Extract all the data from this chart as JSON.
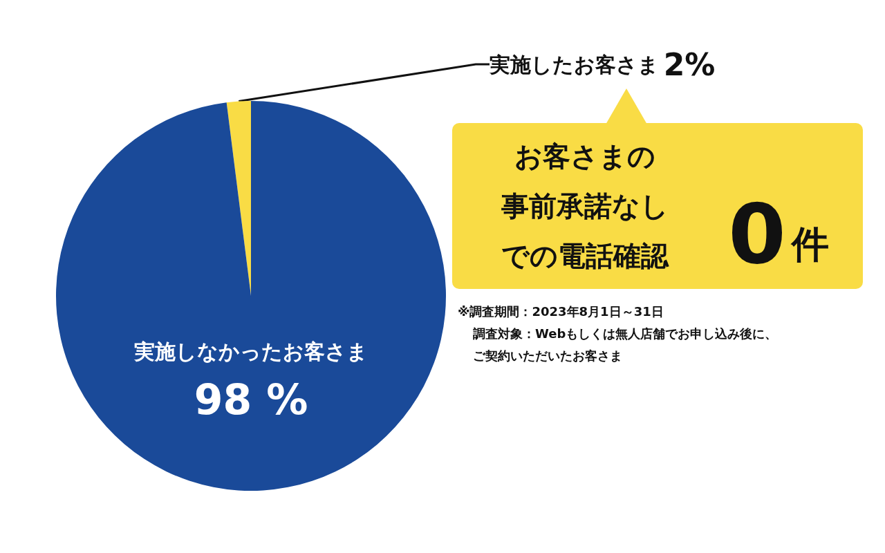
{
  "chart_data": {
    "type": "pie",
    "categories": [
      "実施したお客さま",
      "実施しなかったお客さま"
    ],
    "values": [
      2,
      98
    ],
    "colors": [
      "#f9dc45",
      "#1a4a99"
    ],
    "value_labels": [
      "2%",
      "98 %"
    ],
    "legend": false,
    "annotations": [
      "お客さまの",
      "事前承諾なし",
      "での電話確認",
      "0件",
      "※調査期間：2023年8月1日～31日",
      "調査対象：Webもしくは無人店舗でお申し込み後に、",
      "ご契約いただいたお客さま"
    ]
  }
}
